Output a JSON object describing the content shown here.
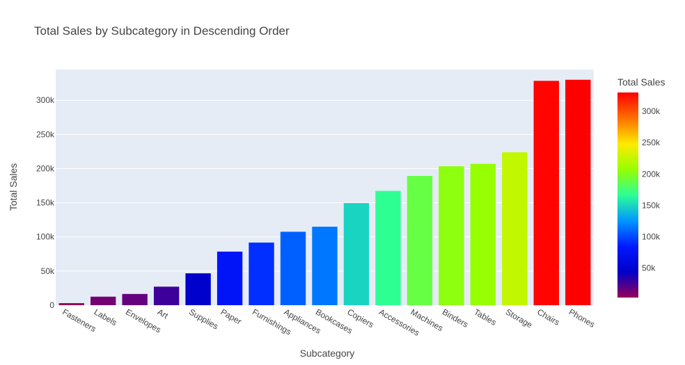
{
  "chart_data": {
    "type": "bar",
    "title": "Total Sales by Subcategory in Descending Order",
    "xlabel": "Subcategory",
    "ylabel": "Total Sales",
    "categories": [
      "Fasteners",
      "Labels",
      "Envelopes",
      "Art",
      "Supplies",
      "Paper",
      "Furnishings",
      "Appliances",
      "Bookcases",
      "Copiers",
      "Accessories",
      "Machines",
      "Binders",
      "Tables",
      "Storage",
      "Chairs",
      "Phones"
    ],
    "values": [
      3024,
      12486,
      16476,
      27119,
      46674,
      78479,
      91705,
      107532,
      114880,
      149528,
      167380,
      189239,
      203413,
      206966,
      223844,
      328449,
      330007
    ],
    "ylim": [
      0,
      345000
    ],
    "yticks": [
      0,
      50000,
      100000,
      150000,
      200000,
      250000,
      300000
    ],
    "ytick_labels": [
      "0",
      "50k",
      "100k",
      "150k",
      "200k",
      "250k",
      "300k"
    ],
    "colorscale": "rainbow",
    "colorbar": {
      "title": "Total Sales",
      "range": [
        3024,
        330007
      ],
      "ticks": [
        50000,
        100000,
        150000,
        200000,
        250000,
        300000
      ],
      "tick_labels": [
        "50k",
        "100k",
        "150k",
        "200k",
        "250k",
        "300k"
      ]
    },
    "plot_background": "#e5ecf6",
    "grid": true
  }
}
